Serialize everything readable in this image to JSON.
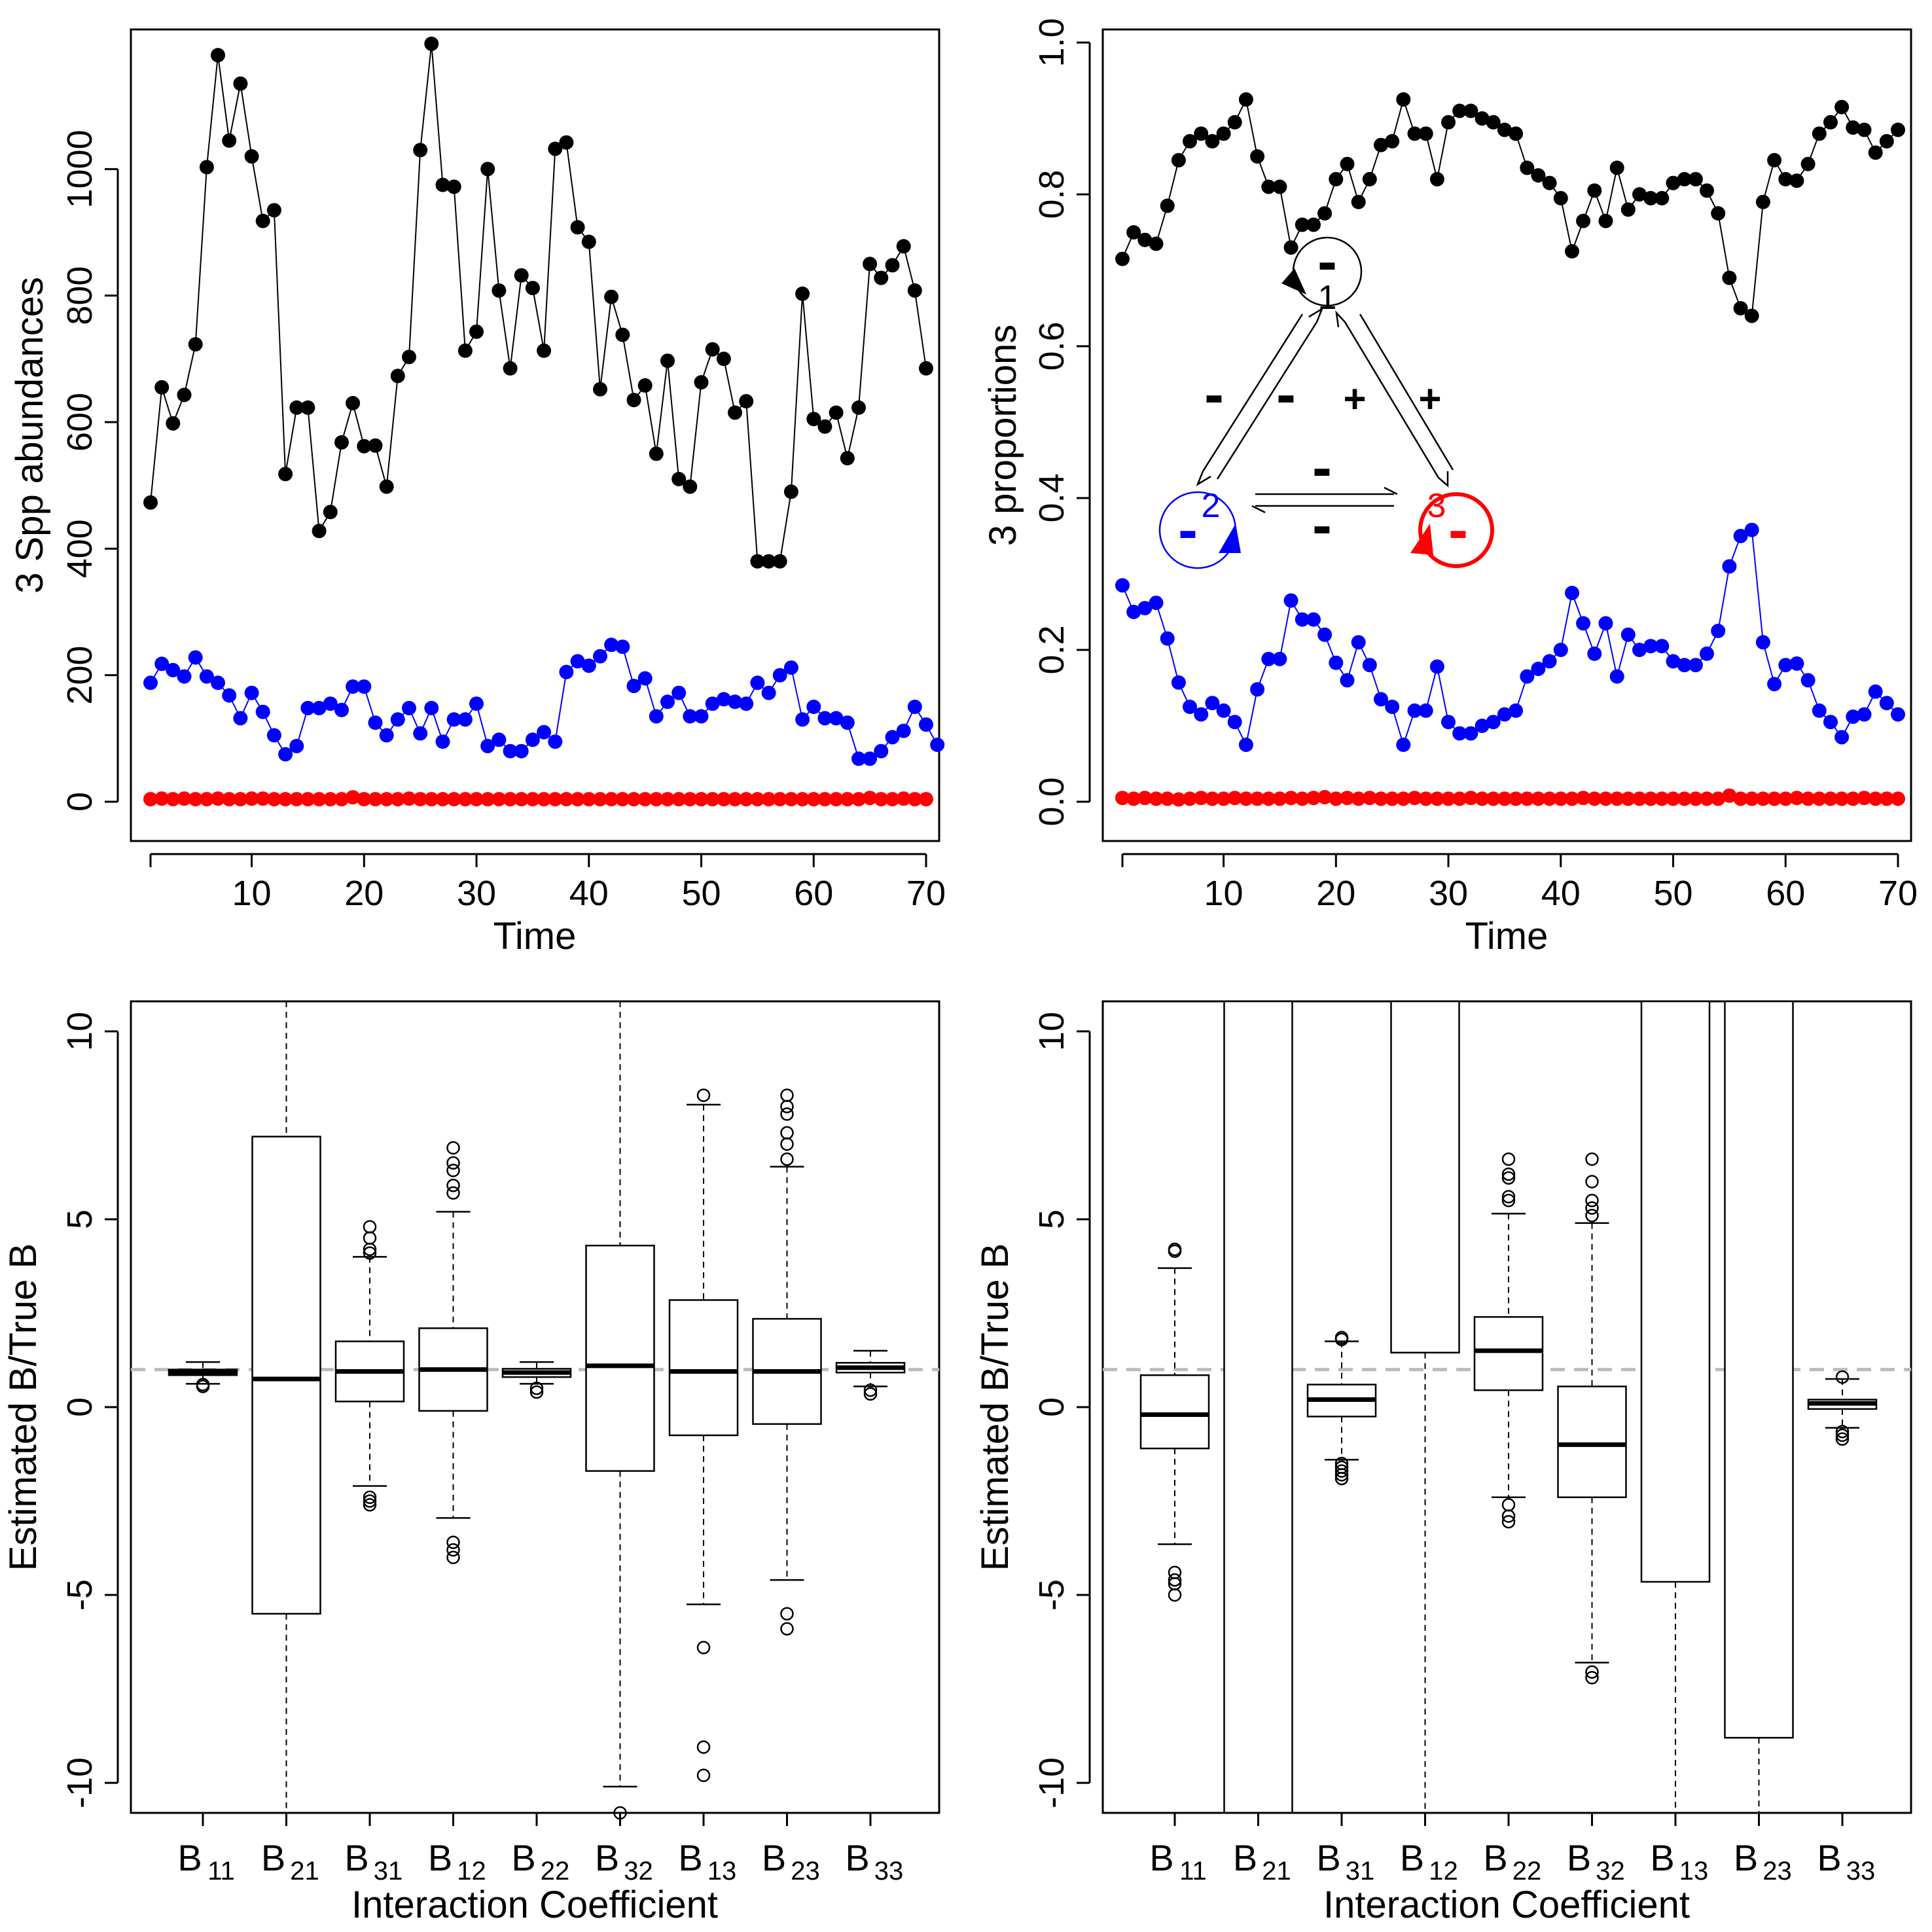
{
  "figure": {
    "panels": [
      {
        "title": "",
        "type": "line-scatter",
        "xlabel": "Time",
        "ylabel": "3 Spp abundances"
      },
      {
        "title": "",
        "type": "line-scatter",
        "xlabel": "Time",
        "ylabel": "3 proportions"
      },
      {
        "title": "",
        "type": "box",
        "xlabel": "Interaction Coefficient",
        "ylabel": "Estimated B/True B"
      },
      {
        "title": "",
        "type": "box",
        "xlabel": "Interaction Coefficient",
        "ylabel": "Estimated B/True B"
      }
    ]
  },
  "diagram": {
    "nodes": [
      {
        "id": "1",
        "label": "1",
        "color": "#000000",
        "self_sign": "-"
      },
      {
        "id": "2",
        "label": "2",
        "color": "#0000ff",
        "self_sign": "-"
      },
      {
        "id": "3",
        "label": "3",
        "color": "#ff0000",
        "self_sign": "-"
      }
    ],
    "edge_signs": {
      "e12": "-",
      "e21": "-",
      "e13": "+",
      "e31": "+",
      "e23": "-",
      "e32": "-"
    }
  },
  "chart_data": [
    {
      "type": "scatter",
      "title": "",
      "xlabel": "Time",
      "ylabel": "3 Spp abundances",
      "xlim": [
        0,
        70
      ],
      "ylim": [
        0,
        1200
      ],
      "xticks": [
        "10",
        "20",
        "30",
        "40",
        "50",
        "60",
        "70"
      ],
      "yticks": [
        "0",
        "200",
        "400",
        "600",
        "800",
        "1000"
      ],
      "colors": [
        "#000000",
        "#0000ff",
        "#ff0000"
      ],
      "series": [
        {
          "values": [
            473,
            655,
            598,
            643,
            723,
            1003,
            1180,
            1045,
            1135,
            1020,
            918,
            935,
            518,
            623,
            623,
            428,
            458,
            568,
            630,
            562,
            563,
            498,
            673,
            703,
            1030,
            1198,
            975,
            972,
            713,
            743,
            1000,
            808,
            685,
            832,
            812,
            713,
            1032,
            1042,
            908,
            885,
            652,
            798,
            738,
            635,
            658,
            550,
            697,
            510,
            498,
            663,
            715,
            700,
            615,
            633,
            380,
            380,
            380,
            490,
            803,
            605,
            593,
            615,
            543,
            623,
            850,
            828,
            848,
            878,
            808,
            685
          ]
        },
        {
          "values": [
            188,
            218,
            208,
            198,
            228,
            198,
            188,
            168,
            132,
            172,
            142,
            105,
            75,
            88,
            148,
            148,
            155,
            145,
            182,
            182,
            125,
            105,
            130,
            148,
            108,
            148,
            95,
            130,
            130,
            155,
            88,
            98,
            80,
            80,
            98,
            110,
            95,
            205,
            222,
            215,
            230,
            248,
            245,
            183,
            195,
            135,
            158,
            172,
            135,
            135,
            155,
            162,
            158,
            155,
            188,
            172,
            200,
            212,
            130,
            150,
            132,
            132,
            125,
            68,
            68,
            80,
            102,
            112,
            150,
            122,
            90
          ]
        },
        {
          "values": [
            4,
            5,
            4,
            5,
            4,
            4,
            5,
            4,
            4,
            5,
            5,
            4,
            4,
            4,
            4,
            4,
            4,
            4,
            7,
            4,
            4,
            4,
            4,
            5,
            4,
            4,
            4,
            4,
            4,
            4,
            4,
            4,
            4,
            4,
            4,
            4,
            4,
            4,
            4,
            4,
            4,
            4,
            4,
            4,
            4,
            4,
            4,
            4,
            4,
            4,
            4,
            4,
            4,
            4,
            4,
            4,
            4,
            4,
            4,
            4,
            4,
            4,
            4,
            4,
            6,
            4,
            4,
            5,
            4,
            4
          ]
        }
      ]
    },
    {
      "type": "scatter",
      "title": "",
      "xlabel": "Time",
      "ylabel": "3 proportions",
      "xlim": [
        0,
        70
      ],
      "ylim": [
        0,
        1
      ],
      "xticks": [
        "10",
        "20",
        "30",
        "40",
        "50",
        "60",
        "70"
      ],
      "yticks": [
        "0.0",
        "0.2",
        "0.4",
        "0.6",
        "0.8",
        "1.0"
      ],
      "colors": [
        "#000000",
        "#0000ff",
        "#ff0000"
      ],
      "series": [
        {
          "values": [
            0.715,
            0.75,
            0.74,
            0.735,
            0.785,
            0.845,
            0.87,
            0.88,
            0.87,
            0.88,
            0.895,
            0.925,
            0.85,
            0.81,
            0.81,
            0.73,
            0.76,
            0.76,
            0.775,
            0.82,
            0.84,
            0.79,
            0.82,
            0.865,
            0.87,
            0.925,
            0.88,
            0.88,
            0.82,
            0.895,
            0.91,
            0.91,
            0.9,
            0.895,
            0.885,
            0.88,
            0.835,
            0.825,
            0.815,
            0.795,
            0.725,
            0.765,
            0.805,
            0.765,
            0.835,
            0.78,
            0.8,
            0.795,
            0.795,
            0.815,
            0.82,
            0.82,
            0.805,
            0.775,
            0.69,
            0.65,
            0.64,
            0.79,
            0.845,
            0.82,
            0.818,
            0.84,
            0.88,
            0.895,
            0.915,
            0.888,
            0.885,
            0.855,
            0.87,
            0.885
          ]
        },
        {
          "values": [
            0.285,
            0.25,
            0.255,
            0.262,
            0.215,
            0.157,
            0.125,
            0.115,
            0.13,
            0.12,
            0.105,
            0.075,
            0.148,
            0.188,
            0.188,
            0.265,
            0.24,
            0.24,
            0.22,
            0.183,
            0.16,
            0.21,
            0.18,
            0.135,
            0.125,
            0.075,
            0.12,
            0.12,
            0.178,
            0.105,
            0.09,
            0.09,
            0.1,
            0.105,
            0.115,
            0.12,
            0.165,
            0.175,
            0.185,
            0.2,
            0.275,
            0.235,
            0.195,
            0.235,
            0.165,
            0.22,
            0.2,
            0.205,
            0.205,
            0.185,
            0.18,
            0.18,
            0.195,
            0.225,
            0.31,
            0.35,
            0.358,
            0.21,
            0.155,
            0.18,
            0.182,
            0.16,
            0.12,
            0.105,
            0.085,
            0.112,
            0.115,
            0.145,
            0.13,
            0.115
          ]
        },
        {
          "values": [
            0.005,
            0.004,
            0.005,
            0.004,
            0.004,
            0.003,
            0.004,
            0.005,
            0.004,
            0.004,
            0.005,
            0.004,
            0.004,
            0.004,
            0.004,
            0.005,
            0.004,
            0.005,
            0.006,
            0.004,
            0.005,
            0.004,
            0.005,
            0.004,
            0.004,
            0.004,
            0.005,
            0.004,
            0.004,
            0.004,
            0.004,
            0.005,
            0.004,
            0.004,
            0.004,
            0.004,
            0.004,
            0.004,
            0.004,
            0.004,
            0.004,
            0.005,
            0.004,
            0.004,
            0.004,
            0.004,
            0.004,
            0.004,
            0.004,
            0.004,
            0.004,
            0.004,
            0.004,
            0.004,
            0.008,
            0.004,
            0.004,
            0.004,
            0.004,
            0.004,
            0.005,
            0.004,
            0.004,
            0.004,
            0.004,
            0.004,
            0.005,
            0.004,
            0.004,
            0.004
          ]
        }
      ]
    },
    {
      "type": "box",
      "title": "",
      "xlabel": "Interaction Coefficient",
      "ylabel": "Estimated B/True B",
      "ylim": [
        -10.8,
        10.8
      ],
      "yticks": [
        "-10",
        "-5",
        "0",
        "5",
        "10"
      ],
      "reference_line": 1,
      "categories": [
        {
          "base": "B",
          "sub": "11"
        },
        {
          "base": "B",
          "sub": "21"
        },
        {
          "base": "B",
          "sub": "31"
        },
        {
          "base": "B",
          "sub": "12"
        },
        {
          "base": "B",
          "sub": "22"
        },
        {
          "base": "B",
          "sub": "32"
        },
        {
          "base": "B",
          "sub": "13"
        },
        {
          "base": "B",
          "sub": "23"
        },
        {
          "base": "B",
          "sub": "33"
        }
      ],
      "boxes": [
        {
          "wlo": 0.62,
          "q1": 0.85,
          "median": 0.92,
          "q3": 1.0,
          "whi": 1.2,
          "outliers": [
            0.55,
            0.6
          ]
        },
        {
          "wlo": -11,
          "q1": -5.5,
          "median": 0.75,
          "q3": 7.2,
          "whi": 11,
          "outliers": []
        },
        {
          "wlo": -2.1,
          "q1": 0.15,
          "median": 0.95,
          "q3": 1.75,
          "whi": 4.0,
          "outliers": [
            4.8,
            4.5,
            4.2,
            4.1,
            -2.4,
            -2.5,
            -2.6
          ]
        },
        {
          "wlo": -2.95,
          "q1": -0.1,
          "median": 1.0,
          "q3": 2.1,
          "whi": 5.2,
          "outliers": [
            5.7,
            5.9,
            6.3,
            6.5,
            6.9,
            -3.6,
            -3.8,
            -4.0
          ]
        },
        {
          "wlo": 0.62,
          "q1": 0.8,
          "median": 0.92,
          "q3": 1.02,
          "whi": 1.2,
          "outliers": [
            0.5,
            0.4
          ]
        },
        {
          "wlo": -10.1,
          "q1": -1.7,
          "median": 1.1,
          "q3": 4.3,
          "whi": 11,
          "outliers": [
            -10.8
          ]
        },
        {
          "wlo": -5.25,
          "q1": -0.75,
          "median": 0.95,
          "q3": 2.85,
          "whi": 8.05,
          "outliers": [
            8.3,
            -6.4,
            -9.05,
            -9.8
          ]
        },
        {
          "wlo": -4.6,
          "q1": -0.45,
          "median": 0.95,
          "q3": 2.35,
          "whi": 6.4,
          "outliers": [
            6.6,
            7.0,
            7.3,
            7.8,
            8.0,
            8.3,
            -5.5,
            -5.9
          ]
        },
        {
          "wlo": 0.55,
          "q1": 0.92,
          "median": 1.05,
          "q3": 1.18,
          "whi": 1.5,
          "outliers": [
            0.45,
            0.35
          ]
        }
      ]
    },
    {
      "type": "box",
      "title": "",
      "xlabel": "Interaction Coefficient",
      "ylabel": "Estimated B/True B",
      "ylim": [
        -10.8,
        10.8
      ],
      "yticks": [
        "-10",
        "-5",
        "0",
        "5",
        "10"
      ],
      "reference_line": 1,
      "categories": [
        {
          "base": "B",
          "sub": "11"
        },
        {
          "base": "B",
          "sub": "21"
        },
        {
          "base": "B",
          "sub": "31"
        },
        {
          "base": "B",
          "sub": "12"
        },
        {
          "base": "B",
          "sub": "22"
        },
        {
          "base": "B",
          "sub": "32"
        },
        {
          "base": "B",
          "sub": "13"
        },
        {
          "base": "B",
          "sub": "23"
        },
        {
          "base": "B",
          "sub": "33"
        }
      ],
      "boxes": [
        {
          "wlo": -3.65,
          "q1": -1.1,
          "median": -0.2,
          "q3": 0.85,
          "whi": 3.7,
          "outliers": [
            4.2,
            4.15,
            -4.4,
            -4.6,
            -4.7,
            -5.0
          ]
        },
        {
          "wlo": -11,
          "q1": -11,
          "median": 11,
          "q3": 11,
          "whi": 11,
          "outliers": []
        },
        {
          "wlo": -1.4,
          "q1": -0.25,
          "median": 0.2,
          "q3": 0.6,
          "whi": 1.75,
          "outliers": [
            1.8,
            1.85,
            -1.5,
            -1.6,
            -1.7,
            -1.8,
            -1.9
          ]
        },
        {
          "wlo": -11,
          "q1": 1.45,
          "median": 11,
          "q3": 11,
          "whi": 11,
          "outliers": []
        },
        {
          "wlo": -2.4,
          "q1": 0.45,
          "median": 1.5,
          "q3": 2.4,
          "whi": 5.15,
          "outliers": [
            5.5,
            5.6,
            6.1,
            6.2,
            6.6,
            -2.6,
            -2.9,
            -3.05
          ]
        },
        {
          "wlo": -6.8,
          "q1": -2.4,
          "median": -1.0,
          "q3": 0.55,
          "whi": 4.9,
          "outliers": [
            5.1,
            5.3,
            5.5,
            6.0,
            6.6,
            -7.05,
            -7.2
          ]
        },
        {
          "wlo": -11,
          "q1": -4.65,
          "median": 11,
          "q3": 11,
          "whi": 11,
          "outliers": []
        },
        {
          "wlo": -11,
          "q1": -8.8,
          "median": 11,
          "q3": 11,
          "whi": 11,
          "outliers": []
        },
        {
          "wlo": -0.55,
          "q1": -0.05,
          "median": 0.1,
          "q3": 0.2,
          "whi": 0.75,
          "outliers": [
            0.8,
            -0.65,
            -0.75,
            -0.85
          ]
        }
      ]
    }
  ]
}
